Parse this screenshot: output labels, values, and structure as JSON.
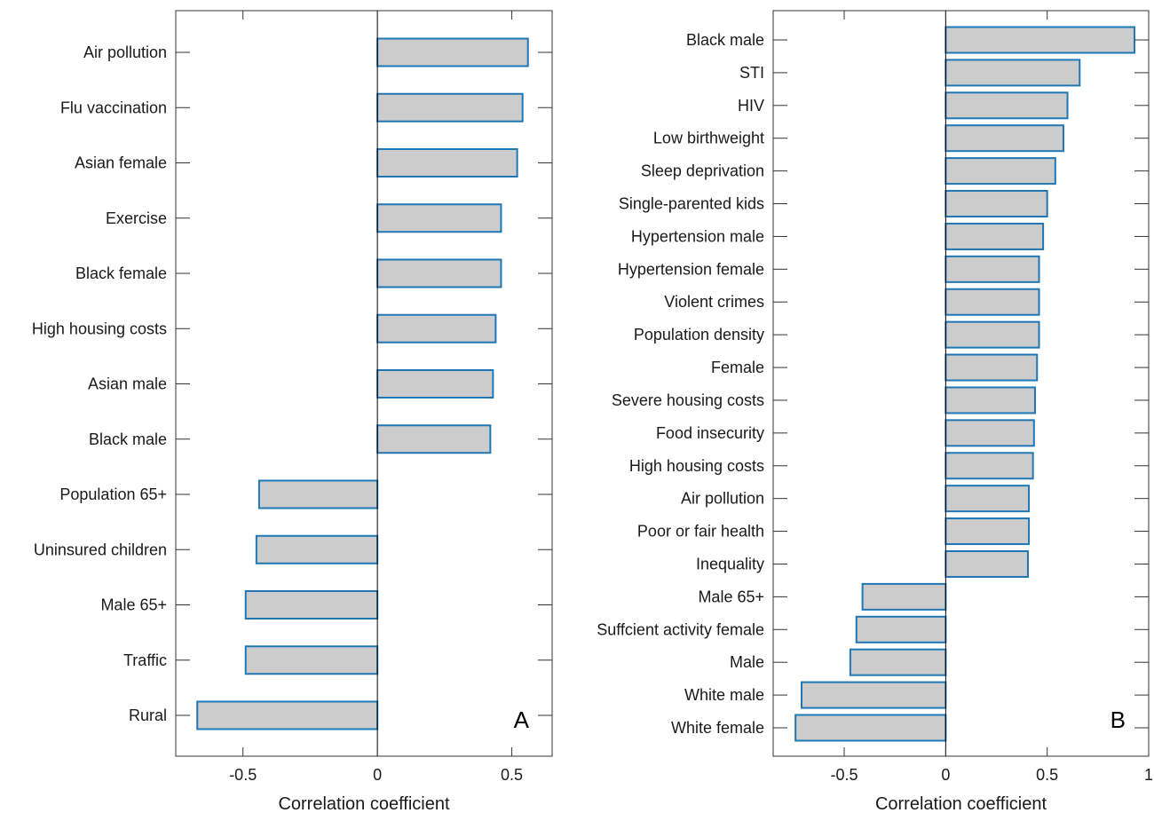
{
  "chart_data": [
    {
      "type": "bar",
      "orientation": "horizontal",
      "panel_label": "A",
      "xlabel": "Correlation coefficient",
      "xlim": [
        -0.75,
        0.65
      ],
      "xticks": [
        -0.5,
        0,
        0.5
      ],
      "xtick_labels": [
        "-0.5",
        "0",
        "0.5"
      ],
      "categories": [
        "Air pollution",
        "Flu vaccination",
        "Asian female",
        "Exercise",
        "Black female",
        "High housing costs",
        "Asian male",
        "Black male",
        "Population 65+",
        "Uninsured children",
        "Male 65+",
        "Traffic",
        "Rural"
      ],
      "values": [
        0.56,
        0.54,
        0.52,
        0.46,
        0.46,
        0.44,
        0.43,
        0.42,
        -0.44,
        -0.45,
        -0.49,
        -0.49,
        -0.67
      ],
      "grid": false,
      "colors": {
        "fill": "#cccccc",
        "edge": "#1f77b4"
      }
    },
    {
      "type": "bar",
      "orientation": "horizontal",
      "panel_label": "B",
      "xlabel": "Correlation coefficient",
      "xlim": [
        -0.85,
        1.0
      ],
      "xticks": [
        -0.5,
        0,
        0.5,
        1
      ],
      "xtick_labels": [
        "-0.5",
        "0",
        "0.5",
        "1"
      ],
      "categories": [
        "Black male",
        "STI",
        "HIV",
        "Low birthweight",
        "Sleep deprivation",
        "Single-parented kids",
        "Hypertension male",
        "Hypertension female",
        "Violent crimes",
        "Population density",
        "Female",
        "Severe housing costs",
        "Food insecurity",
        "High housing costs",
        "Air pollution",
        "Poor or fair health",
        "Inequality",
        "Male 65+",
        "Suffcient activity female",
        "Male",
        "White male",
        "White female"
      ],
      "values": [
        0.93,
        0.66,
        0.6,
        0.58,
        0.54,
        0.5,
        0.48,
        0.46,
        0.46,
        0.46,
        0.45,
        0.44,
        0.435,
        0.43,
        0.41,
        0.41,
        0.405,
        -0.41,
        -0.44,
        -0.47,
        -0.71,
        -0.74
      ],
      "grid": false,
      "colors": {
        "fill": "#cccccc",
        "edge": "#1f77b4"
      }
    }
  ]
}
